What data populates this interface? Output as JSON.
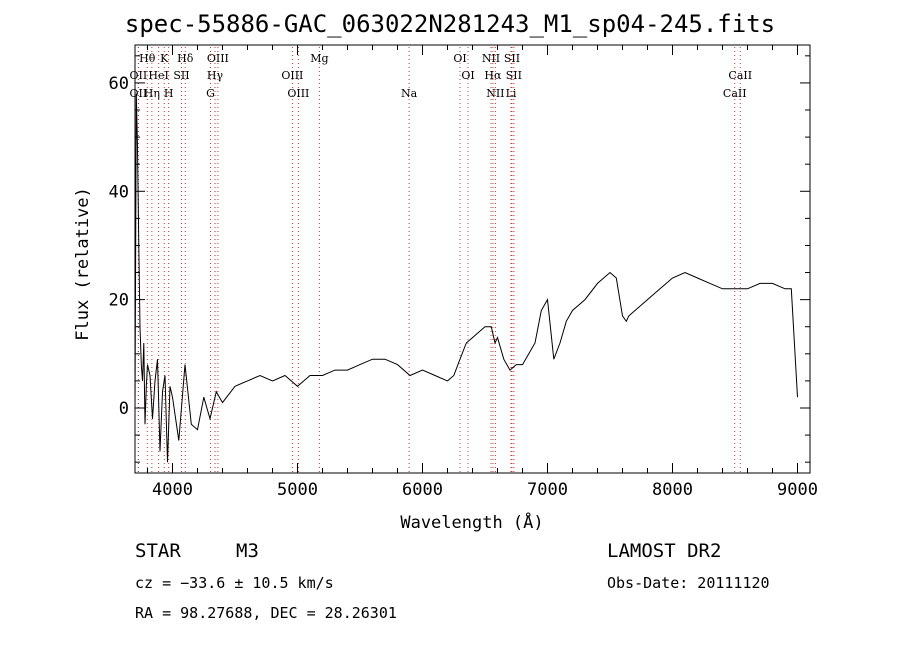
{
  "chart_data": {
    "type": "line",
    "title": "spec-55886-GAC_063022N281243_M1_sp04-245.fits",
    "xlabel": "Wavelength (Å)",
    "ylabel": "Flux (relative)",
    "xlim": [
      3700,
      9100
    ],
    "ylim": [
      -12,
      67
    ],
    "xticks": [
      4000,
      5000,
      6000,
      7000,
      8000,
      9000
    ],
    "yticks": [
      0,
      20,
      40,
      60
    ],
    "series": [
      {
        "x": [
          3700,
          3710,
          3720,
          3730,
          3740,
          3750,
          3760,
          3770,
          3780,
          3790,
          3800,
          3820,
          3840,
          3860,
          3880,
          3900,
          3920,
          3940,
          3960,
          3980,
          4000,
          4050,
          4100,
          4150,
          4200,
          4250,
          4300,
          4350,
          4400,
          4500,
          4600,
          4700,
          4800,
          4900,
          5000,
          5100,
          5200,
          5300,
          5400,
          5500,
          5600,
          5700,
          5800,
          5900,
          6000,
          6100,
          6200,
          6250,
          6300,
          6350,
          6400,
          6450,
          6500,
          6550,
          6580,
          6600,
          6650,
          6700,
          6750,
          6800,
          6850,
          6900,
          6950,
          7000,
          7050,
          7100,
          7150,
          7200,
          7300,
          7400,
          7500,
          7550,
          7600,
          7630,
          7650,
          7700,
          7800,
          7900,
          8000,
          8100,
          8200,
          8300,
          8400,
          8500,
          8600,
          8700,
          8800,
          8900,
          8950,
          9000
        ],
        "values": [
          0,
          58,
          48,
          30,
          15,
          8,
          5,
          12,
          -3,
          4,
          8,
          6,
          -2,
          5,
          9,
          -8,
          3,
          6,
          -10,
          4,
          2,
          -6,
          8,
          -3,
          -4,
          2,
          -2,
          3,
          1,
          4,
          5,
          6,
          5,
          6,
          4,
          6,
          6,
          7,
          7,
          8,
          9,
          9,
          8,
          6,
          7,
          6,
          5,
          6,
          9,
          12,
          13,
          14,
          15,
          15,
          12,
          13,
          9,
          7,
          8,
          8,
          10,
          12,
          18,
          20,
          9,
          12,
          16,
          18,
          20,
          23,
          25,
          24,
          17,
          16,
          17,
          18,
          20,
          22,
          24,
          25,
          24,
          23,
          22,
          22,
          22,
          23,
          23,
          22,
          22,
          2
        ],
        "color": "#000000"
      }
    ],
    "line_markers": [
      {
        "label": "Hθ",
        "x": 3798,
        "row": 0
      },
      {
        "label": "K",
        "x": 3934,
        "row": 0
      },
      {
        "label": "Hδ",
        "x": 4102,
        "row": 0
      },
      {
        "label": "OIII",
        "x": 4363,
        "row": 0
      },
      {
        "label": "Mg",
        "x": 5175,
        "row": 0
      },
      {
        "label": "OI",
        "x": 6300,
        "row": 0
      },
      {
        "label": "NII",
        "x": 6548,
        "row": 0
      },
      {
        "label": "SII",
        "x": 6716,
        "row": 0
      },
      {
        "label": "OII",
        "x": 3727,
        "row": 1
      },
      {
        "label": "HeI",
        "x": 3889,
        "row": 1
      },
      {
        "label": "SII",
        "x": 4072,
        "row": 1
      },
      {
        "label": "Hγ",
        "x": 4340,
        "row": 1
      },
      {
        "label": "OIII",
        "x": 4959,
        "row": 1
      },
      {
        "label": "OI",
        "x": 6364,
        "row": 1
      },
      {
        "label": "Hα",
        "x": 6563,
        "row": 1
      },
      {
        "label": "SII",
        "x": 6731,
        "row": 1
      },
      {
        "label": "CaII",
        "x": 8542,
        "row": 1
      },
      {
        "label": "OII",
        "x": 3727,
        "row": 2
      },
      {
        "label": "Hη",
        "x": 3835,
        "row": 2
      },
      {
        "label": "H",
        "x": 3969,
        "row": 2
      },
      {
        "label": "G",
        "x": 4304,
        "row": 2
      },
      {
        "label": "OIII",
        "x": 5007,
        "row": 2
      },
      {
        "label": "Na",
        "x": 5893,
        "row": 2
      },
      {
        "label": "NII",
        "x": 6583,
        "row": 2
      },
      {
        "label": "Li",
        "x": 6708,
        "row": 2
      },
      {
        "label": "CaII",
        "x": 8498,
        "row": 2
      }
    ]
  },
  "info": {
    "class": "STAR",
    "subclass": "M3",
    "survey": "LAMOST DR2",
    "cz": "cz = −33.6 ± 10.5 km/s",
    "obs_date": "Obs-Date: 20111120",
    "coords": "RA =  98.27688, DEC =  28.26301"
  }
}
